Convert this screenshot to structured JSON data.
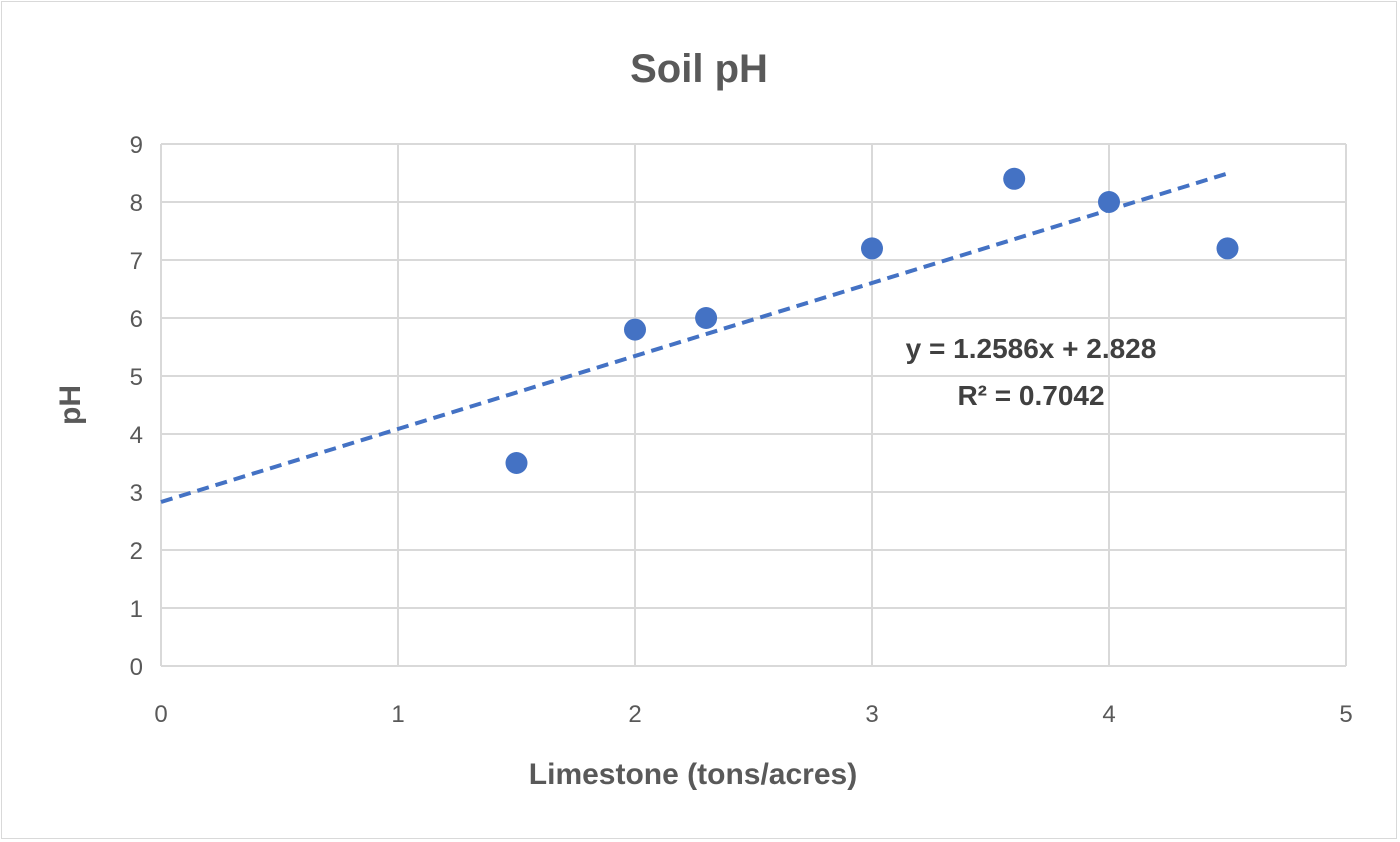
{
  "chart_data": {
    "type": "scatter",
    "title": "Soil pH",
    "xlabel": "Limestone (tons/acres)",
    "ylabel": "pH",
    "xlim": [
      0,
      5
    ],
    "ylim": [
      0,
      9
    ],
    "x_ticks": [
      "0",
      "1",
      "2",
      "3",
      "4",
      "5"
    ],
    "y_ticks": [
      "0",
      "1",
      "2",
      "3",
      "4",
      "5",
      "6",
      "7",
      "8",
      "9"
    ],
    "grid": true,
    "legend": "none",
    "series": [
      {
        "color": "#4472c4",
        "points": [
          {
            "x": 1.5,
            "y": 3.5
          },
          {
            "x": 2.0,
            "y": 5.8
          },
          {
            "x": 2.3,
            "y": 6.0
          },
          {
            "x": 3.0,
            "y": 7.2
          },
          {
            "x": 3.6,
            "y": 8.4
          },
          {
            "x": 4.0,
            "y": 8.0
          },
          {
            "x": 4.5,
            "y": 7.2
          }
        ]
      }
    ],
    "trendline": {
      "type": "linear",
      "slope": 1.2586,
      "intercept": 2.828,
      "x_range": [
        0,
        4.5
      ],
      "color": "#4472c4",
      "equation_label": "y = 1.2586x + 2.828",
      "r2_label": "R² = 0.7042"
    }
  }
}
